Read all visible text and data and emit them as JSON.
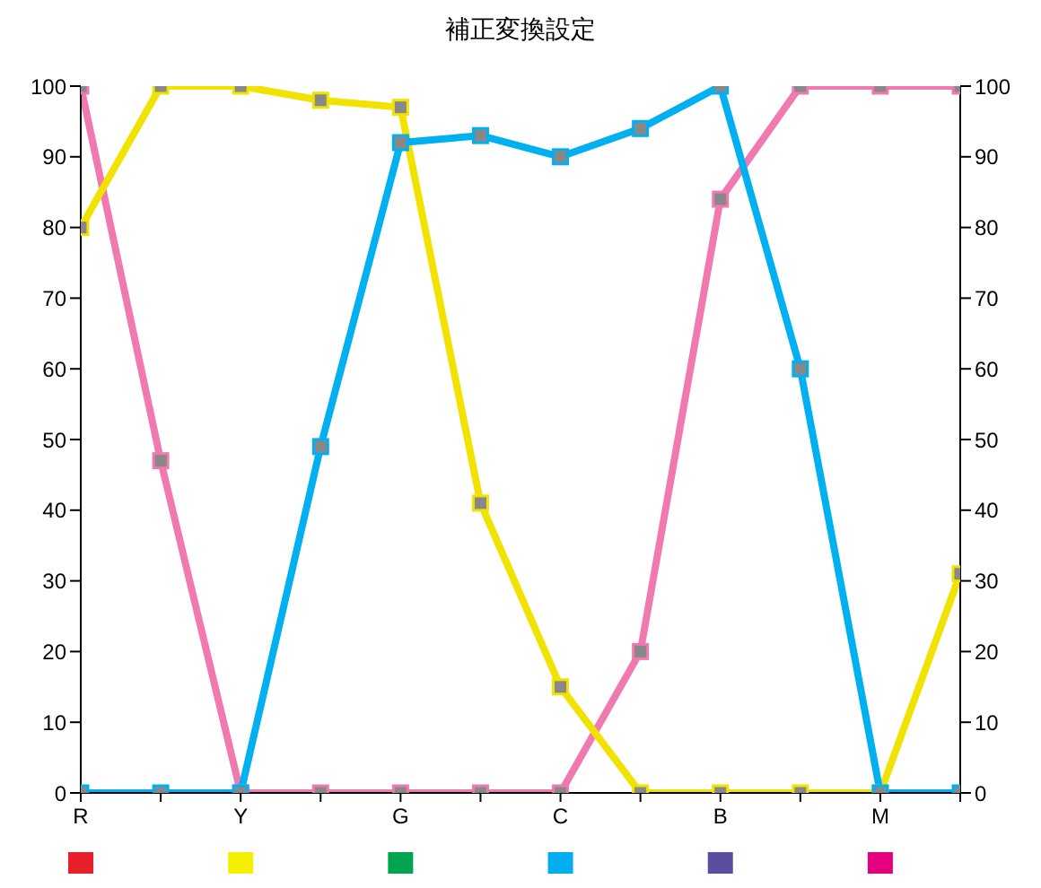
{
  "chart_data": {
    "type": "line",
    "title": "補正変換設定",
    "categories": [
      "R",
      null,
      "Y",
      null,
      "G",
      null,
      "C",
      null,
      "B",
      null,
      "M",
      null
    ],
    "series": [
      {
        "color": "#f07ab0",
        "values": [
          100,
          47,
          0,
          0,
          0,
          0,
          0,
          20,
          84,
          100,
          100,
          100
        ]
      },
      {
        "color": "#f2e200",
        "values": [
          80,
          100,
          100,
          98,
          97,
          41,
          15,
          0,
          0,
          0,
          0,
          31
        ]
      },
      {
        "color": "#00b0f0",
        "values": [
          0,
          0,
          0,
          49,
          92,
          93,
          90,
          94,
          100,
          60,
          0,
          0
        ]
      }
    ],
    "ylim": [
      0,
      100
    ],
    "yticks": [
      0,
      10,
      20,
      30,
      40,
      50,
      60,
      70,
      80,
      90,
      100
    ],
    "y2lim": [
      0,
      100
    ],
    "y2ticks": [
      0,
      10,
      20,
      30,
      40,
      50,
      60,
      70,
      80,
      90,
      100
    ],
    "marker": "square",
    "line_style": "solid",
    "grid": false
  }
}
